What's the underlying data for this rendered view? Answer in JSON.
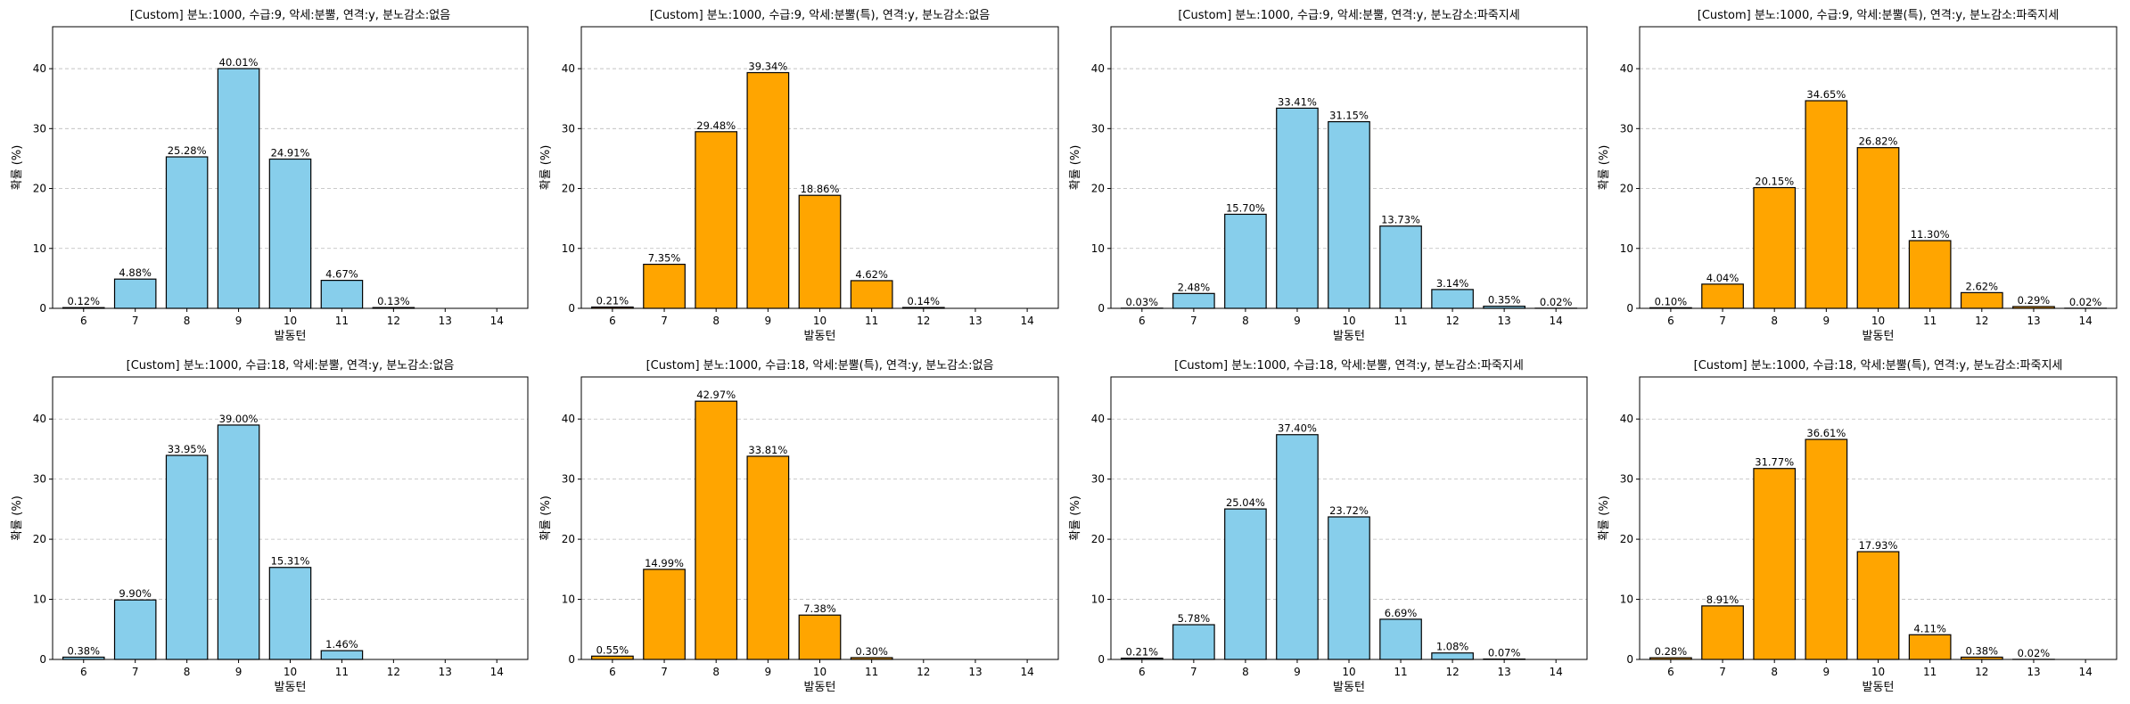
{
  "chart_data": [
    {
      "type": "bar",
      "title": "[Custom] 분노:1000, 수급:9, 악세:분뿔, 연격:y, 분노감소:없음",
      "xlabel": "발동턴",
      "ylabel": "확률 (%)",
      "ylim": [
        0,
        47
      ],
      "yticks": [
        0,
        10,
        20,
        30,
        40
      ],
      "grid": "y-dashed",
      "bar_color": "#87CEEB",
      "categories": [
        "6",
        "7",
        "8",
        "9",
        "10",
        "11",
        "12",
        "13",
        "14"
      ],
      "values": [
        0.12,
        4.88,
        25.28,
        40.01,
        24.91,
        4.67,
        0.13,
        null,
        null
      ],
      "labels": [
        "0.12%",
        "4.88%",
        "25.28%",
        "40.01%",
        "24.91%",
        "4.67%",
        "0.13%",
        "",
        ""
      ]
    },
    {
      "type": "bar",
      "title": "[Custom] 분노:1000, 수급:9, 악세:분뿔(특), 연격:y, 분노감소:없음",
      "xlabel": "발동턴",
      "ylabel": "확률 (%)",
      "ylim": [
        0,
        47
      ],
      "yticks": [
        0,
        10,
        20,
        30,
        40
      ],
      "grid": "y-dashed",
      "bar_color": "#FFA500",
      "categories": [
        "6",
        "7",
        "8",
        "9",
        "10",
        "11",
        "12",
        "13",
        "14"
      ],
      "values": [
        0.21,
        7.35,
        29.48,
        39.34,
        18.86,
        4.62,
        0.14,
        null,
        null
      ],
      "labels": [
        "0.21%",
        "7.35%",
        "29.48%",
        "39.34%",
        "18.86%",
        "4.62%",
        "0.14%",
        "",
        ""
      ]
    },
    {
      "type": "bar",
      "title": "[Custom] 분노:1000, 수급:9, 악세:분뿔, 연격:y, 분노감소:파죽지세",
      "xlabel": "발동턴",
      "ylabel": "확률 (%)",
      "ylim": [
        0,
        47
      ],
      "yticks": [
        0,
        10,
        20,
        30,
        40
      ],
      "grid": "y-dashed",
      "bar_color": "#87CEEB",
      "categories": [
        "6",
        "7",
        "8",
        "9",
        "10",
        "11",
        "12",
        "13",
        "14"
      ],
      "values": [
        0.03,
        2.48,
        15.7,
        33.41,
        31.15,
        13.73,
        3.14,
        0.35,
        0.02
      ],
      "labels": [
        "0.03%",
        "2.48%",
        "15.70%",
        "33.41%",
        "31.15%",
        "13.73%",
        "3.14%",
        "0.35%",
        "0.02%"
      ]
    },
    {
      "type": "bar",
      "title": "[Custom] 분노:1000, 수급:9, 악세:분뿔(특), 연격:y, 분노감소:파죽지세",
      "xlabel": "발동턴",
      "ylabel": "확률 (%)",
      "ylim": [
        0,
        47
      ],
      "yticks": [
        0,
        10,
        20,
        30,
        40
      ],
      "grid": "y-dashed",
      "bar_color": "#FFA500",
      "categories": [
        "6",
        "7",
        "8",
        "9",
        "10",
        "11",
        "12",
        "13",
        "14"
      ],
      "values": [
        0.1,
        4.04,
        20.15,
        34.65,
        26.82,
        11.3,
        2.62,
        0.29,
        0.02
      ],
      "labels": [
        "0.10%",
        "4.04%",
        "20.15%",
        "34.65%",
        "26.82%",
        "11.30%",
        "2.62%",
        "0.29%",
        "0.02%"
      ]
    },
    {
      "type": "bar",
      "title": "[Custom] 분노:1000, 수급:18, 악세:분뿔, 연격:y, 분노감소:없음",
      "xlabel": "발동턴",
      "ylabel": "확률 (%)",
      "ylim": [
        0,
        47
      ],
      "yticks": [
        0,
        10,
        20,
        30,
        40
      ],
      "grid": "y-dashed",
      "bar_color": "#87CEEB",
      "categories": [
        "6",
        "7",
        "8",
        "9",
        "10",
        "11",
        "12",
        "13",
        "14"
      ],
      "values": [
        0.38,
        9.9,
        33.95,
        39.0,
        15.31,
        1.46,
        null,
        null,
        null
      ],
      "labels": [
        "0.38%",
        "9.90%",
        "33.95%",
        "39.00%",
        "15.31%",
        "1.46%",
        "",
        "",
        ""
      ]
    },
    {
      "type": "bar",
      "title": "[Custom] 분노:1000, 수급:18, 악세:분뿔(특), 연격:y, 분노감소:없음",
      "xlabel": "발동턴",
      "ylabel": "확률 (%)",
      "ylim": [
        0,
        47
      ],
      "yticks": [
        0,
        10,
        20,
        30,
        40
      ],
      "grid": "y-dashed",
      "bar_color": "#FFA500",
      "categories": [
        "6",
        "7",
        "8",
        "9",
        "10",
        "11",
        "12",
        "13",
        "14"
      ],
      "values": [
        0.55,
        14.99,
        42.97,
        33.81,
        7.38,
        0.3,
        null,
        null,
        null
      ],
      "labels": [
        "0.55%",
        "14.99%",
        "42.97%",
        "33.81%",
        "7.38%",
        "0.30%",
        "",
        "",
        ""
      ]
    },
    {
      "type": "bar",
      "title": "[Custom] 분노:1000, 수급:18, 악세:분뿔, 연격:y, 분노감소:파죽지세",
      "xlabel": "발동턴",
      "ylabel": "확률 (%)",
      "ylim": [
        0,
        47
      ],
      "yticks": [
        0,
        10,
        20,
        30,
        40
      ],
      "grid": "y-dashed",
      "bar_color": "#87CEEB",
      "categories": [
        "6",
        "7",
        "8",
        "9",
        "10",
        "11",
        "12",
        "13",
        "14"
      ],
      "values": [
        0.21,
        5.78,
        25.04,
        37.4,
        23.72,
        6.69,
        1.08,
        0.07,
        null
      ],
      "labels": [
        "0.21%",
        "5.78%",
        "25.04%",
        "37.40%",
        "23.72%",
        "6.69%",
        "1.08%",
        "0.07%",
        ""
      ]
    },
    {
      "type": "bar",
      "title": "[Custom] 분노:1000, 수급:18, 악세:분뿔(특), 연격:y, 분노감소:파죽지세",
      "xlabel": "발동턴",
      "ylabel": "확률 (%)",
      "ylim": [
        0,
        47
      ],
      "yticks": [
        0,
        10,
        20,
        30,
        40
      ],
      "grid": "y-dashed",
      "bar_color": "#FFA500",
      "categories": [
        "6",
        "7",
        "8",
        "9",
        "10",
        "11",
        "12",
        "13",
        "14"
      ],
      "values": [
        0.28,
        8.91,
        31.77,
        36.61,
        17.93,
        4.11,
        0.38,
        0.02,
        null
      ],
      "labels": [
        "0.28%",
        "8.91%",
        "31.77%",
        "36.61%",
        "17.93%",
        "4.11%",
        "0.38%",
        "0.02%",
        ""
      ]
    }
  ]
}
